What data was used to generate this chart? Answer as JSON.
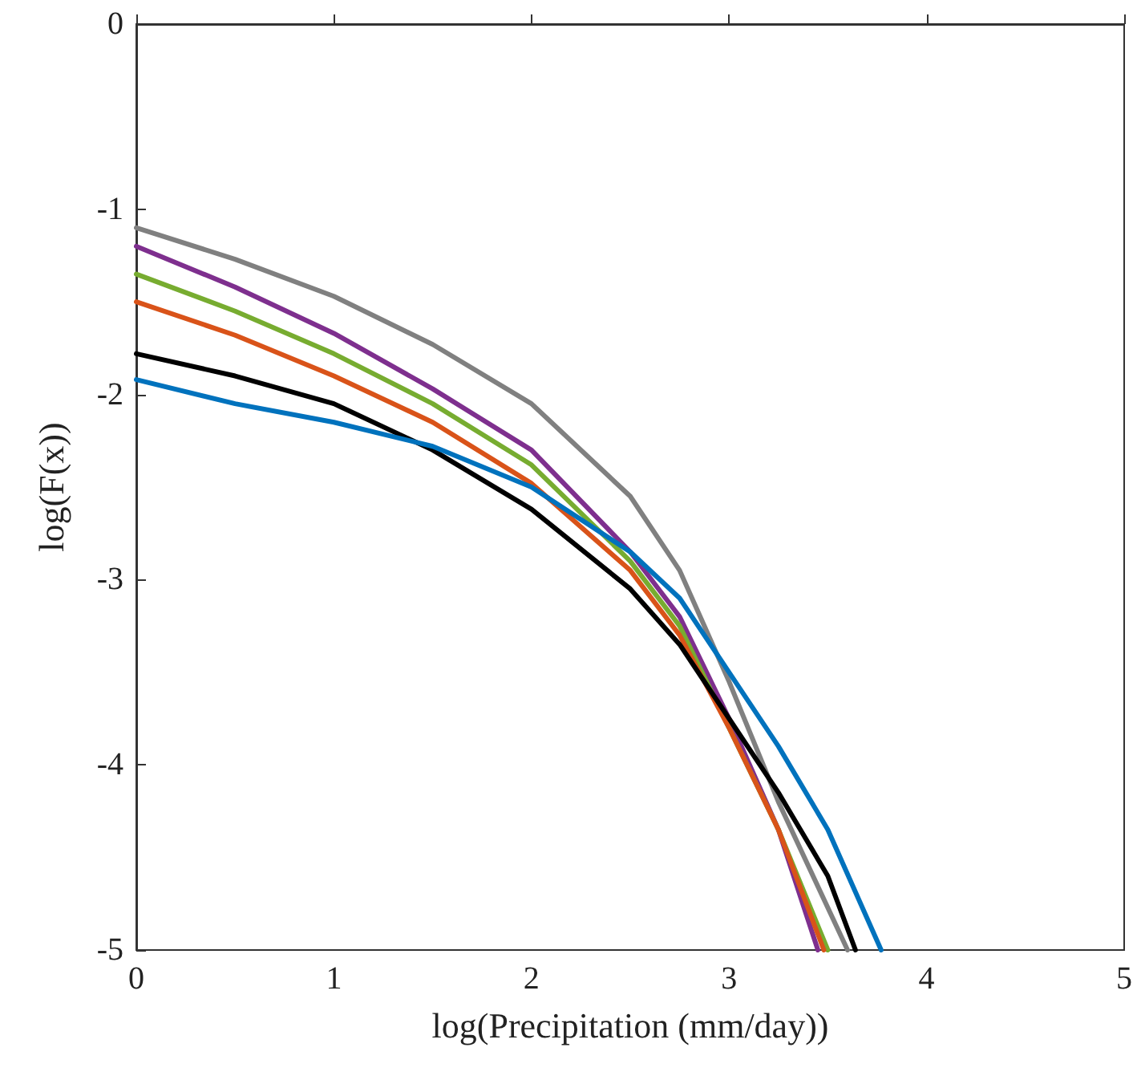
{
  "chart_data": {
    "type": "line",
    "xlabel": "log(Precipitation (mm/day))",
    "ylabel": "log(F(x))",
    "xlim": [
      0,
      5
    ],
    "xticks": [
      0,
      1,
      2,
      3,
      4,
      5
    ],
    "ylim": [
      -5,
      0
    ],
    "yticks": [
      -5,
      -4,
      -3,
      -2,
      -1,
      0
    ],
    "grid": false,
    "marker": "none",
    "line_style": "solid",
    "series": [
      {
        "color": "#808080",
        "x": [
          0,
          0.5,
          1,
          1.5,
          2,
          2.5,
          2.75,
          3,
          3.25,
          3.6
        ],
        "values": [
          -1.1,
          -1.27,
          -1.47,
          -1.73,
          -2.05,
          -2.55,
          -2.95,
          -3.55,
          -4.2,
          -5
        ]
      },
      {
        "color": "#7e2f8e",
        "x": [
          0,
          0.5,
          1,
          1.5,
          2,
          2.5,
          2.75,
          3,
          3.25,
          3.45
        ],
        "values": [
          -1.2,
          -1.42,
          -1.67,
          -1.97,
          -2.3,
          -2.85,
          -3.2,
          -3.75,
          -4.35,
          -5
        ]
      },
      {
        "color": "#77ac30",
        "x": [
          0,
          0.5,
          1,
          1.5,
          2,
          2.5,
          2.75,
          3,
          3.25,
          3.5
        ],
        "values": [
          -1.35,
          -1.55,
          -1.78,
          -2.05,
          -2.38,
          -2.9,
          -3.25,
          -3.8,
          -4.35,
          -5
        ]
      },
      {
        "color": "#d95319",
        "x": [
          0,
          0.5,
          1,
          1.5,
          2,
          2.5,
          2.75,
          3,
          3.25,
          3.48
        ],
        "values": [
          -1.5,
          -1.68,
          -1.9,
          -2.15,
          -2.48,
          -2.95,
          -3.3,
          -3.8,
          -4.35,
          -5
        ]
      },
      {
        "color": "#000000",
        "x": [
          0,
          0.5,
          1,
          1.5,
          2,
          2.5,
          2.75,
          3,
          3.25,
          3.5,
          3.64
        ],
        "values": [
          -1.78,
          -1.9,
          -2.05,
          -2.3,
          -2.62,
          -3.05,
          -3.35,
          -3.75,
          -4.15,
          -4.6,
          -5
        ]
      },
      {
        "color": "#0072bd",
        "x": [
          0,
          0.5,
          1,
          1.5,
          2,
          2.5,
          2.75,
          3,
          3.25,
          3.5,
          3.77
        ],
        "values": [
          -1.92,
          -2.05,
          -2.15,
          -2.28,
          -2.5,
          -2.85,
          -3.1,
          -3.5,
          -3.9,
          -4.35,
          -5
        ]
      }
    ]
  }
}
